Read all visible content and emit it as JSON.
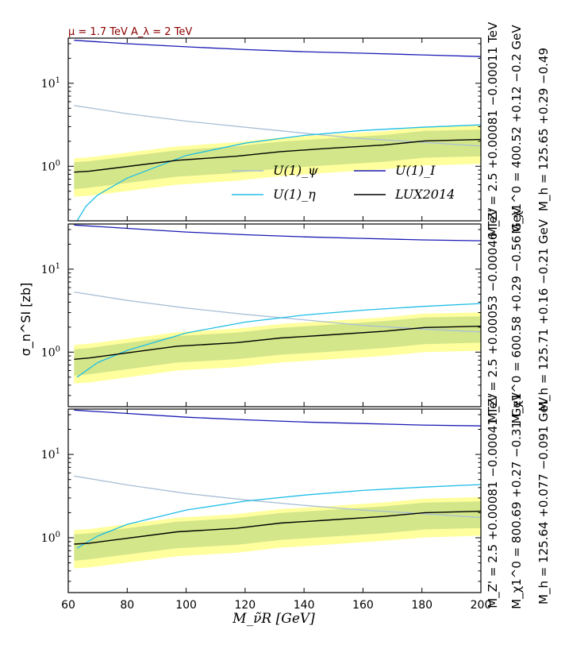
{
  "header": {
    "text": "μ = 1.7 TeV A_λ = 2 TeV",
    "color": "#8b0000"
  },
  "axes_labels": {
    "xlabel": "M_ν̃R [GeV]",
    "ylabel": "σ_n^SI [zb]"
  },
  "colors": {
    "psi": "#a8bfd6",
    "eta": "#1ebde6",
    "I": "#1a1ab4",
    "lux": "#000000",
    "band_outer": "#ffff9e",
    "band_inner": "#d4e68a"
  },
  "chart_data": [
    {
      "type": "line",
      "x": [
        62,
        67,
        97,
        117,
        132,
        147,
        167,
        181,
        200
      ],
      "xlim": [
        60,
        200
      ],
      "ylim": [
        0.22,
        35
      ],
      "yscale": "log",
      "xticks": [
        60,
        80,
        100,
        120,
        140,
        160,
        180,
        200
      ],
      "yticks": [
        {
          "value": 1,
          "label": "10^0"
        },
        {
          "value": 10,
          "label": "10^1"
        }
      ],
      "legend": {
        "placement": "center-right",
        "entries": [
          {
            "key": "psi",
            "label": "U(1)_ψ"
          },
          {
            "key": "I",
            "label": "U(1)_I"
          },
          {
            "key": "eta",
            "label": "U(1)_η"
          },
          {
            "key": "lux",
            "label": "LUX2014"
          }
        ]
      },
      "side_labels": [
        "M_Z' = 2.5 +0.00081 −0.00011 TeV",
        "M_χ1^0 = 400.52 +0.12 −0.2 GeV",
        "M_h = 125.65 +0.29 −0.49"
      ],
      "series": [
        {
          "key": "psi",
          "x": [
            62,
            80,
            100,
            120,
            140,
            160,
            180,
            200
          ],
          "values": [
            5.4,
            4.3,
            3.5,
            2.95,
            2.5,
            2.15,
            1.95,
            1.75
          ]
        },
        {
          "key": "eta",
          "x": [
            63,
            66,
            70,
            80,
            100,
            120,
            140,
            160,
            180,
            200
          ],
          "values": [
            0.22,
            0.33,
            0.45,
            0.72,
            1.35,
            1.9,
            2.35,
            2.7,
            2.95,
            3.15
          ]
        },
        {
          "key": "I",
          "x": [
            62,
            80,
            100,
            120,
            140,
            160,
            180,
            200
          ],
          "values": [
            33,
            30,
            27.5,
            25.5,
            24,
            23,
            22,
            21
          ]
        },
        {
          "key": "lux",
          "x": [
            62,
            67,
            97,
            117,
            132,
            147,
            167,
            181,
            200
          ],
          "values": [
            0.85,
            0.87,
            1.18,
            1.32,
            1.5,
            1.63,
            1.8,
            2.02,
            2.1
          ]
        }
      ],
      "band_inner": {
        "lower": [
          0.53,
          0.55,
          0.75,
          0.83,
          0.94,
          1.02,
          1.13,
          1.27,
          1.32
        ],
        "upper": [
          1.12,
          1.15,
          1.56,
          1.74,
          1.98,
          2.15,
          2.38,
          2.67,
          2.77
        ]
      },
      "band_outer": {
        "lower": [
          0.43,
          0.44,
          0.6,
          0.67,
          0.76,
          0.83,
          0.92,
          1.02,
          1.07
        ],
        "upper": [
          1.25,
          1.28,
          1.74,
          1.95,
          2.21,
          2.4,
          2.65,
          2.98,
          3.1
        ]
      }
    },
    {
      "type": "line",
      "x": [
        62,
        67,
        97,
        117,
        132,
        147,
        167,
        181,
        200
      ],
      "xlim": [
        60,
        200
      ],
      "ylim": [
        0.22,
        35
      ],
      "yscale": "log",
      "xticks": [
        60,
        80,
        100,
        120,
        140,
        160,
        180,
        200
      ],
      "yticks": [
        {
          "value": 1,
          "label": "10^0"
        },
        {
          "value": 10,
          "label": "10^1"
        }
      ],
      "side_labels": [
        "M_Z' = 2.5 +0.00053 −0.00046 TeV",
        "M_χ1^0 = 600.58 +0.29 −0.56 GeV",
        "M_h = 125.71 +0.16 −0.21 GeV"
      ],
      "series": [
        {
          "key": "psi",
          "x": [
            62,
            80,
            100,
            120,
            140,
            160,
            180,
            200
          ],
          "values": [
            5.3,
            4.2,
            3.4,
            2.85,
            2.45,
            2.1,
            1.9,
            1.75
          ]
        },
        {
          "key": "eta",
          "x": [
            63,
            70,
            80,
            100,
            120,
            140,
            160,
            180,
            200
          ],
          "values": [
            0.5,
            0.75,
            1.05,
            1.7,
            2.3,
            2.8,
            3.2,
            3.55,
            3.85
          ]
        },
        {
          "key": "I",
          "x": [
            62,
            80,
            100,
            120,
            140,
            160,
            180,
            200
          ],
          "values": [
            34,
            31,
            28,
            26,
            24.5,
            23.5,
            22.5,
            22
          ]
        },
        {
          "key": "lux",
          "x": [
            62,
            67,
            97,
            117,
            132,
            147,
            167,
            181,
            200
          ],
          "values": [
            0.82,
            0.85,
            1.18,
            1.3,
            1.48,
            1.6,
            1.78,
            1.98,
            2.05
          ]
        }
      ],
      "band_inner": {
        "lower": [
          0.52,
          0.54,
          0.75,
          0.82,
          0.93,
          1.0,
          1.12,
          1.25,
          1.3
        ],
        "upper": [
          1.08,
          1.12,
          1.56,
          1.72,
          1.96,
          2.12,
          2.36,
          2.62,
          2.7
        ]
      },
      "band_outer": {
        "lower": [
          0.42,
          0.43,
          0.6,
          0.66,
          0.75,
          0.81,
          0.9,
          1.0,
          1.04
        ],
        "upper": [
          1.22,
          1.26,
          1.74,
          1.92,
          2.18,
          2.36,
          2.62,
          2.92,
          3.02
        ]
      }
    },
    {
      "type": "line",
      "x": [
        62,
        67,
        97,
        117,
        132,
        147,
        167,
        181,
        200
      ],
      "xlim": [
        60,
        200
      ],
      "ylim": [
        0.22,
        35
      ],
      "yscale": "log",
      "xticks": [
        60,
        80,
        100,
        120,
        140,
        160,
        180,
        200
      ],
      "yticks": [
        {
          "value": 1,
          "label": "10^0"
        },
        {
          "value": 10,
          "label": "10^1"
        }
      ],
      "side_labels": [
        "M_Z' = 2.5 +0.00081 −0.00041 TeV",
        "M_χ1^0 = 800.69 +0.27 −0.31 GeV",
        "M_h = 125.64 +0.077 −0.091 GeV"
      ],
      "series": [
        {
          "key": "psi",
          "x": [
            62,
            80,
            100,
            120,
            140,
            160,
            180,
            200
          ],
          "values": [
            5.5,
            4.3,
            3.4,
            2.85,
            2.45,
            2.15,
            1.95,
            1.75
          ]
        },
        {
          "key": "eta",
          "x": [
            63,
            70,
            80,
            100,
            120,
            140,
            160,
            180,
            200
          ],
          "values": [
            0.75,
            1.05,
            1.45,
            2.15,
            2.75,
            3.25,
            3.7,
            4.05,
            4.35
          ]
        },
        {
          "key": "I",
          "x": [
            62,
            80,
            100,
            120,
            140,
            160,
            180,
            200
          ],
          "values": [
            34,
            31,
            28,
            26,
            24.5,
            23.5,
            22.5,
            22
          ]
        },
        {
          "key": "lux",
          "x": [
            62,
            67,
            97,
            117,
            132,
            147,
            167,
            181,
            200
          ],
          "values": [
            0.84,
            0.86,
            1.18,
            1.3,
            1.5,
            1.62,
            1.8,
            2.0,
            2.08
          ]
        }
      ],
      "band_inner": {
        "lower": [
          0.53,
          0.55,
          0.75,
          0.82,
          0.94,
          1.02,
          1.13,
          1.26,
          1.31
        ],
        "upper": [
          1.1,
          1.13,
          1.56,
          1.72,
          1.98,
          2.14,
          2.38,
          2.64,
          2.74
        ]
      },
      "band_outer": {
        "lower": [
          0.43,
          0.44,
          0.6,
          0.66,
          0.76,
          0.82,
          0.92,
          1.01,
          1.06
        ],
        "upper": [
          1.24,
          1.27,
          1.74,
          1.92,
          2.21,
          2.38,
          2.65,
          2.95,
          3.08
        ]
      }
    }
  ]
}
